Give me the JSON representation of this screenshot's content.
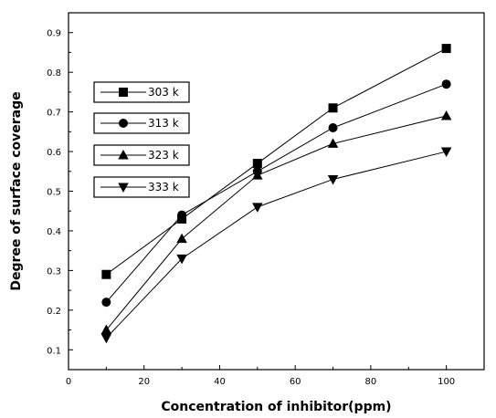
{
  "chart_data": {
    "type": "line",
    "title": "",
    "xlabel": "Concentration of inhibitor(ppm)",
    "ylabel": "Degree of surface coverage",
    "xlim": [
      0,
      110
    ],
    "ylim": [
      0.05,
      0.95
    ],
    "xticks": [
      0,
      20,
      40,
      60,
      80,
      100
    ],
    "xtick_labels": [
      "0",
      "20",
      "40",
      "60",
      "80",
      "100"
    ],
    "yticks": [
      0.1,
      0.2,
      0.3,
      0.4,
      0.5,
      0.6,
      0.7,
      0.8,
      0.9
    ],
    "ytick_labels": [
      "0.1",
      "0.2",
      "0.3",
      "0.4",
      "0.5",
      "0.6",
      "0.7",
      "0.8",
      "0.9"
    ],
    "grid": false,
    "legend_position": "upper-left",
    "x": [
      10,
      30,
      50,
      70,
      100
    ],
    "series": [
      {
        "name": "303 k",
        "marker": "square",
        "values": [
          0.29,
          0.43,
          0.57,
          0.71,
          0.86
        ]
      },
      {
        "name": "313 k",
        "marker": "circle",
        "values": [
          0.22,
          0.44,
          0.55,
          0.66,
          0.77
        ]
      },
      {
        "name": "323 k",
        "marker": "triangle-up",
        "values": [
          0.15,
          0.38,
          0.54,
          0.62,
          0.69
        ]
      },
      {
        "name": "333 k",
        "marker": "triangle-down",
        "values": [
          0.13,
          0.33,
          0.46,
          0.53,
          0.6
        ]
      }
    ],
    "colors": {
      "line": "#000000",
      "marker": "#000000",
      "background": "#ffffff"
    }
  }
}
